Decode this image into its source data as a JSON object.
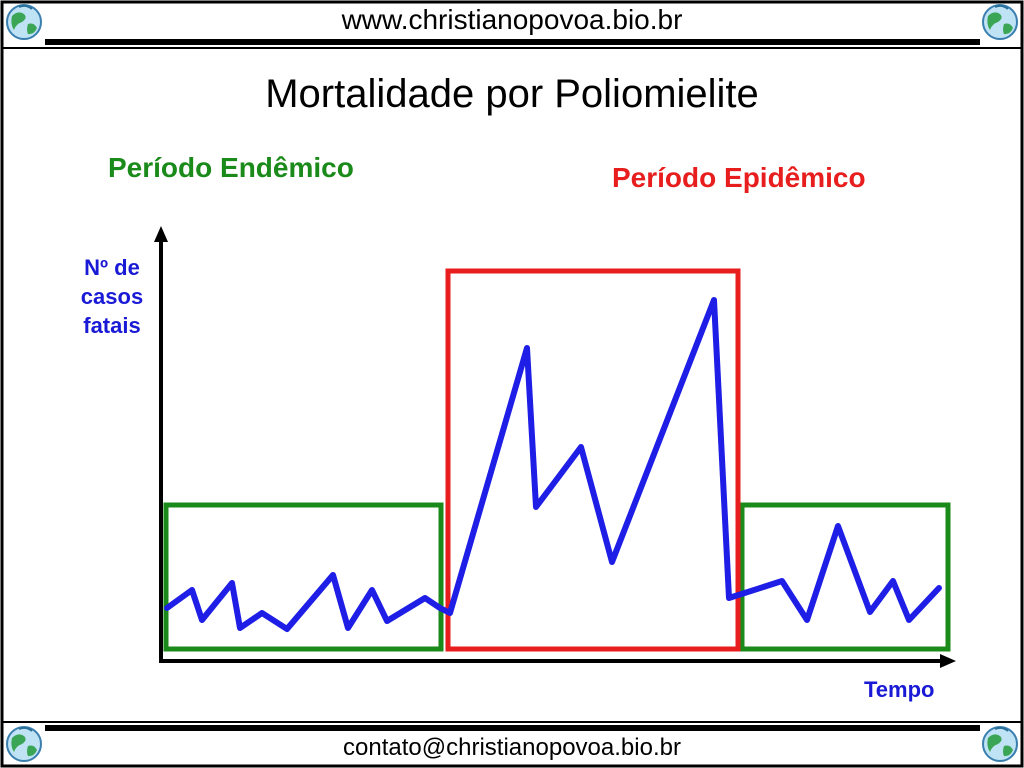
{
  "header": {
    "url": "www.christianopovoa.bio.br"
  },
  "footer": {
    "contact": "contato@christianopovoa.bio.br"
  },
  "slide": {
    "title": "Mortalidade por Poliomielite",
    "endemic_label": "Período Endêmico",
    "epidemic_label": "Período Epidêmico",
    "y_axis_label": "Nº de\ncasos\nfatais",
    "x_axis_label": "Tempo"
  },
  "colors": {
    "endemic": "#1a8a1a",
    "epidemic": "#e81e1e",
    "series_line": "#1e1ee6",
    "axis_labels": "#1a1ad6"
  },
  "icons": [
    "globe-icon"
  ]
}
